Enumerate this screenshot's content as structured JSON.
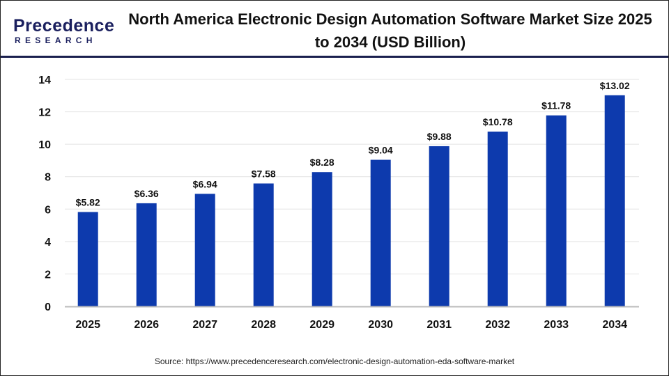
{
  "logo": {
    "line1": "Precedence",
    "line2": "RESEARCH"
  },
  "title": "North America Electronic Design Automation Software Market Size 2025 to 2034 (USD Billion)",
  "source": "Source: https://www.precedenceresearch.com/electronic-design-automation-eda-software-market",
  "chart_data": {
    "type": "bar",
    "title": "North America Electronic Design Automation Software Market Size 2025 to 2034 (USD Billion)",
    "categories": [
      "2025",
      "2026",
      "2027",
      "2028",
      "2029",
      "2030",
      "2031",
      "2032",
      "2033",
      "2034"
    ],
    "values": [
      5.82,
      6.36,
      6.94,
      7.58,
      8.28,
      9.04,
      9.88,
      10.78,
      11.78,
      13.02
    ],
    "data_labels": [
      "$5.82",
      "$6.36",
      "$6.94",
      "$7.58",
      "$8.28",
      "$9.04",
      "$9.88",
      "$10.78",
      "$11.78",
      "$13.02"
    ],
    "yticks": [
      0,
      2,
      4,
      6,
      8,
      10,
      12,
      14
    ],
    "ylim": [
      0,
      14
    ],
    "grid": true,
    "bar_color": "#0d3aad",
    "xlabel": "",
    "ylabel": ""
  }
}
